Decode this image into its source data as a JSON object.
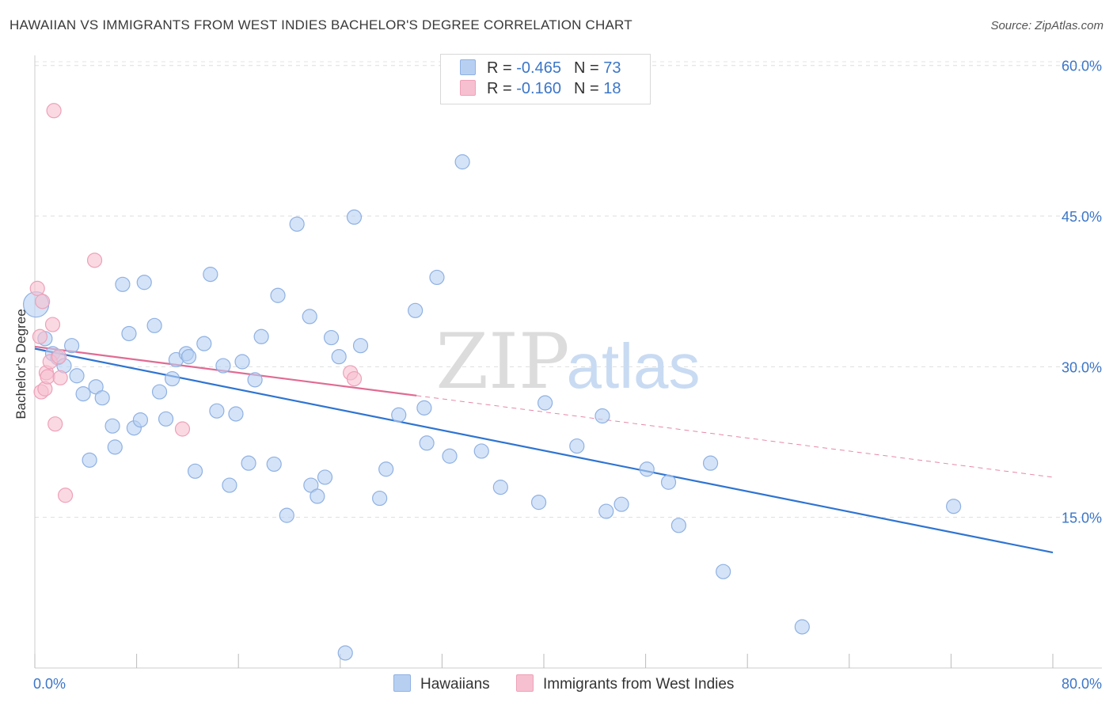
{
  "title": "HAWAIIAN VS IMMIGRANTS FROM WEST INDIES BACHELOR'S DEGREE CORRELATION CHART",
  "source": "Source: ZipAtlas.com",
  "watermark": {
    "zip": "ZIP",
    "atlas": "atlas"
  },
  "legend": {
    "rows": [
      {
        "r_label": "R = ",
        "r_value": "-0.465",
        "n_label": "N = ",
        "n_value": "73",
        "color": "#b7d0f2"
      },
      {
        "r_label": "R = ",
        "r_value": " -0.160",
        "n_label": "N = ",
        "n_value": " 18",
        "color": "#f7c0d0"
      }
    ]
  },
  "bottom_legend": [
    {
      "label": "Hawaiians",
      "color": "#b7d0f2"
    },
    {
      "label": "Immigrants from West Indies",
      "color": "#f7c0d0"
    }
  ],
  "chart_data": {
    "type": "scatter",
    "title": "HAWAIIAN VS IMMIGRANTS FROM WEST INDIES BACHELOR'S DEGREE CORRELATION CHART",
    "xlabel": "",
    "ylabel": "Bachelor's Degree",
    "xlim": [
      0,
      80
    ],
    "ylim": [
      0,
      61
    ],
    "x_tick_labels": [
      {
        "value": 0,
        "label": "0.0%"
      },
      {
        "value": 80,
        "label": "80.0%"
      }
    ],
    "y_tick_labels": [
      {
        "value": 15,
        "label": "15.0%"
      },
      {
        "value": 30,
        "label": "30.0%"
      },
      {
        "value": 45,
        "label": "45.0%"
      },
      {
        "value": 60,
        "label": "60.0%"
      }
    ],
    "grid": true,
    "legend_position": "top-center",
    "series": [
      {
        "name": "Hawaiians",
        "color": "#b7d0f2",
        "stroke": "#8fb1e3",
        "trend_color": "#2f74d0",
        "trend": {
          "x": [
            0,
            80
          ],
          "y": [
            31.8,
            11.5
          ],
          "dashed_from": null
        },
        "points": [
          {
            "x": 0.1,
            "y": 36.2,
            "big": true
          },
          {
            "x": 0.8,
            "y": 32.8
          },
          {
            "x": 1.4,
            "y": 31.3
          },
          {
            "x": 1.8,
            "y": 30.9
          },
          {
            "x": 2.3,
            "y": 30.1
          },
          {
            "x": 2.9,
            "y": 32.1
          },
          {
            "x": 3.3,
            "y": 29.1
          },
          {
            "x": 3.8,
            "y": 27.3
          },
          {
            "x": 4.3,
            "y": 20.7
          },
          {
            "x": 4.8,
            "y": 28.0
          },
          {
            "x": 5.3,
            "y": 26.9
          },
          {
            "x": 6.1,
            "y": 24.1
          },
          {
            "x": 6.3,
            "y": 22.0
          },
          {
            "x": 6.9,
            "y": 38.2
          },
          {
            "x": 7.4,
            "y": 33.3
          },
          {
            "x": 7.8,
            "y": 23.9
          },
          {
            "x": 8.3,
            "y": 24.7
          },
          {
            "x": 8.6,
            "y": 38.4
          },
          {
            "x": 9.4,
            "y": 34.1
          },
          {
            "x": 9.8,
            "y": 27.5
          },
          {
            "x": 10.3,
            "y": 24.8
          },
          {
            "x": 10.8,
            "y": 28.8
          },
          {
            "x": 11.1,
            "y": 30.7
          },
          {
            "x": 11.9,
            "y": 31.3
          },
          {
            "x": 12.1,
            "y": 31.0
          },
          {
            "x": 12.6,
            "y": 19.6
          },
          {
            "x": 13.3,
            "y": 32.3
          },
          {
            "x": 13.8,
            "y": 39.2
          },
          {
            "x": 14.3,
            "y": 25.6
          },
          {
            "x": 14.8,
            "y": 30.1
          },
          {
            "x": 15.3,
            "y": 18.2
          },
          {
            "x": 15.8,
            "y": 25.3
          },
          {
            "x": 16.3,
            "y": 30.5
          },
          {
            "x": 16.8,
            "y": 20.4
          },
          {
            "x": 17.3,
            "y": 28.7
          },
          {
            "x": 17.8,
            "y": 33.0
          },
          {
            "x": 18.8,
            "y": 20.3
          },
          {
            "x": 19.1,
            "y": 37.1
          },
          {
            "x": 19.8,
            "y": 15.2
          },
          {
            "x": 20.6,
            "y": 44.2
          },
          {
            "x": 21.6,
            "y": 35.0
          },
          {
            "x": 21.7,
            "y": 18.2
          },
          {
            "x": 22.2,
            "y": 17.1
          },
          {
            "x": 22.8,
            "y": 19.0
          },
          {
            "x": 23.3,
            "y": 32.9
          },
          {
            "x": 23.9,
            "y": 31.0
          },
          {
            "x": 24.4,
            "y": 1.5
          },
          {
            "x": 25.1,
            "y": 44.9
          },
          {
            "x": 25.6,
            "y": 32.1
          },
          {
            "x": 27.1,
            "y": 16.9
          },
          {
            "x": 27.6,
            "y": 19.8
          },
          {
            "x": 28.6,
            "y": 25.2
          },
          {
            "x": 29.9,
            "y": 35.6
          },
          {
            "x": 30.6,
            "y": 25.9
          },
          {
            "x": 30.8,
            "y": 22.4
          },
          {
            "x": 31.6,
            "y": 38.9
          },
          {
            "x": 32.6,
            "y": 21.1
          },
          {
            "x": 33.6,
            "y": 50.4
          },
          {
            "x": 35.1,
            "y": 21.6
          },
          {
            "x": 36.6,
            "y": 18.0
          },
          {
            "x": 39.6,
            "y": 16.5
          },
          {
            "x": 40.1,
            "y": 26.4
          },
          {
            "x": 42.6,
            "y": 22.1
          },
          {
            "x": 44.6,
            "y": 25.1
          },
          {
            "x": 44.9,
            "y": 15.6
          },
          {
            "x": 46.1,
            "y": 16.3
          },
          {
            "x": 48.1,
            "y": 19.8
          },
          {
            "x": 49.8,
            "y": 18.5
          },
          {
            "x": 50.6,
            "y": 14.2
          },
          {
            "x": 53.1,
            "y": 20.4
          },
          {
            "x": 54.1,
            "y": 9.6
          },
          {
            "x": 60.3,
            "y": 4.1
          },
          {
            "x": 72.2,
            "y": 16.1
          }
        ]
      },
      {
        "name": "Immigrants from West Indies",
        "color": "#f7c0d0",
        "stroke": "#eea1b8",
        "trend_color": "#e06b93",
        "trend": {
          "x": [
            0,
            80
          ],
          "y": [
            32.0,
            19.0
          ],
          "solid_until": 30
        },
        "points": [
          {
            "x": 0.2,
            "y": 37.8
          },
          {
            "x": 0.4,
            "y": 33.0
          },
          {
            "x": 0.5,
            "y": 27.5
          },
          {
            "x": 0.6,
            "y": 36.5
          },
          {
            "x": 0.8,
            "y": 27.8
          },
          {
            "x": 0.9,
            "y": 29.4
          },
          {
            "x": 1.0,
            "y": 29.0
          },
          {
            "x": 1.2,
            "y": 30.5
          },
          {
            "x": 1.4,
            "y": 34.2
          },
          {
            "x": 1.5,
            "y": 55.5
          },
          {
            "x": 1.6,
            "y": 24.3
          },
          {
            "x": 1.9,
            "y": 31.0
          },
          {
            "x": 2.0,
            "y": 28.9
          },
          {
            "x": 2.4,
            "y": 17.2
          },
          {
            "x": 4.7,
            "y": 40.6
          },
          {
            "x": 11.6,
            "y": 23.8
          },
          {
            "x": 24.8,
            "y": 29.4
          },
          {
            "x": 25.1,
            "y": 28.8
          }
        ]
      }
    ]
  }
}
